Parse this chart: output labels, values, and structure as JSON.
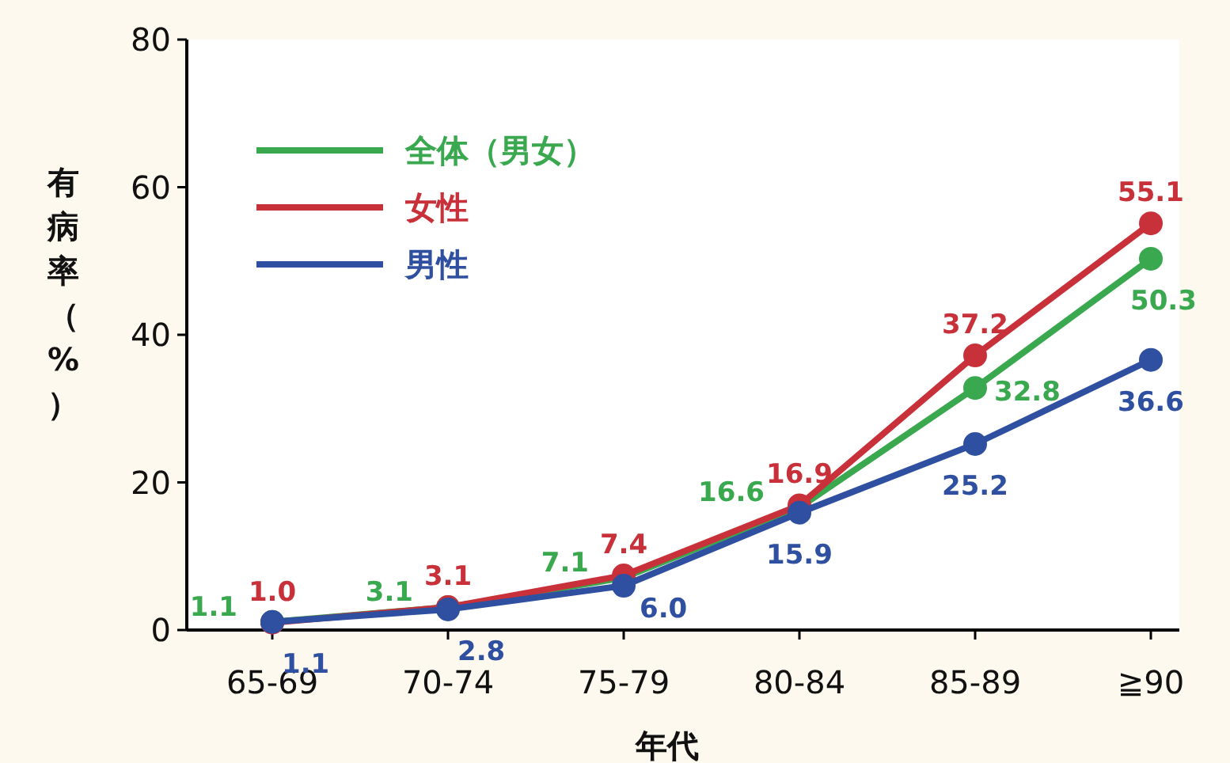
{
  "chart_data": {
    "type": "line",
    "xlabel": "年代",
    "ylabel": "有病率（%）",
    "categories": [
      "65-69",
      "70-74",
      "75-79",
      "80-84",
      "85-89",
      "≧90"
    ],
    "series": [
      {
        "name": "全体（男女）",
        "color": "#3aa84e",
        "values": [
          1.1,
          3.1,
          7.1,
          16.6,
          32.8,
          50.3
        ],
        "value_labels": [
          "1.1",
          "3.1",
          "7.1",
          "16.6",
          "32.8",
          "50.3"
        ]
      },
      {
        "name": "女性",
        "color": "#c8303a",
        "values": [
          1.0,
          3.1,
          7.4,
          16.9,
          37.2,
          55.1
        ],
        "value_labels": [
          "1.0",
          "3.1",
          "7.4",
          "16.9",
          "37.2",
          "55.1"
        ]
      },
      {
        "name": "男性",
        "color": "#2f4fa0",
        "values": [
          1.1,
          2.8,
          6.0,
          15.9,
          25.2,
          36.6
        ],
        "value_labels": [
          "1.1",
          "2.8",
          "6.0",
          "15.9",
          "25.2",
          "36.6"
        ]
      }
    ],
    "ylim": [
      0,
      80
    ],
    "yticks": [
      0,
      20,
      40,
      60,
      80
    ],
    "legend": "top left",
    "marker": "circle",
    "grid": false
  }
}
